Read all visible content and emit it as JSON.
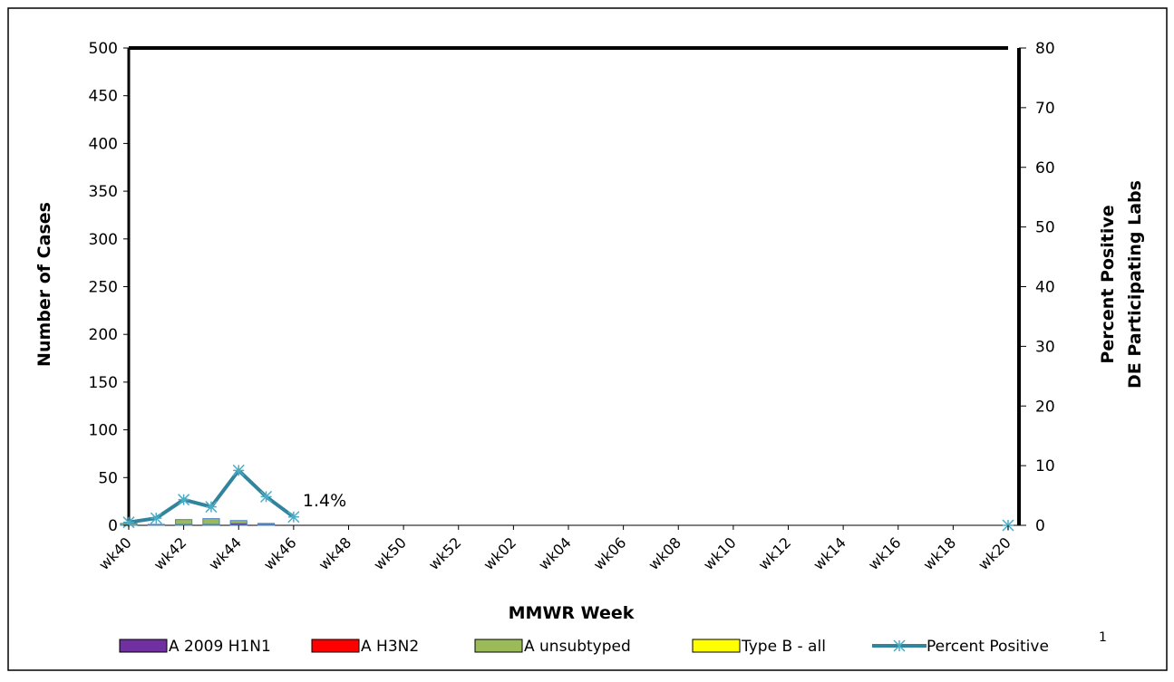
{
  "chart_data": {
    "type": "bar",
    "categories": [
      "wk40",
      "wk41",
      "wk42",
      "wk43",
      "wk44",
      "wk45",
      "wk46",
      "wk47",
      "wk48",
      "wk49",
      "wk50",
      "wk51",
      "wk52",
      "wk01",
      "wk02",
      "wk03",
      "wk04",
      "wk05",
      "wk06",
      "wk07",
      "wk08",
      "wk09",
      "wk10",
      "wk11",
      "wk12",
      "wk13",
      "wk14",
      "wk15",
      "wk16",
      "wk17",
      "wk18",
      "wk19",
      "wk20"
    ],
    "tick_labels": [
      "wk40",
      "wk42",
      "wk44",
      "wk46",
      "wk48",
      "wk50",
      "wk52",
      "wk02",
      "wk04",
      "wk06",
      "wk08",
      "wk10",
      "wk12",
      "wk14",
      "wk16",
      "wk18",
      "wk20"
    ],
    "xlabel": "MMWR Week",
    "ylabel": "Number of Cases",
    "y2label_line1": "Percent Positive",
    "y2label_line2": "DE Participating Labs",
    "ylim": [
      0,
      500
    ],
    "yticks": [
      0,
      50,
      100,
      150,
      200,
      250,
      300,
      350,
      400,
      450,
      500
    ],
    "y2lim": [
      0,
      80
    ],
    "y2ticks": [
      0,
      10,
      20,
      30,
      40,
      50,
      60,
      70,
      80
    ],
    "stacked": true,
    "series": [
      {
        "name": "A 2009 H1N1",
        "kind": "bar",
        "color": "#7030a0",
        "values": [
          0,
          0,
          1,
          1,
          2,
          0,
          0,
          0,
          0,
          0,
          0,
          0,
          0,
          0,
          0,
          0,
          0,
          0,
          0,
          0,
          0,
          0,
          0,
          0,
          0,
          0,
          0,
          0,
          0,
          0,
          0,
          0,
          0
        ]
      },
      {
        "name": "A H3N2",
        "kind": "bar",
        "color": "#ff0000",
        "values": [
          0,
          0,
          0,
          0,
          0,
          1,
          0,
          0,
          0,
          0,
          0,
          0,
          0,
          0,
          0,
          0,
          0,
          0,
          0,
          0,
          0,
          0,
          0,
          0,
          0,
          0,
          0,
          0,
          0,
          0,
          0,
          0,
          0
        ]
      },
      {
        "name": "A unsubtyped",
        "kind": "bar",
        "color": "#9bbb59",
        "values": [
          2,
          1,
          5,
          6,
          3,
          1,
          0,
          0,
          0,
          0,
          0,
          0,
          0,
          0,
          0,
          0,
          0,
          0,
          0,
          0,
          0,
          0,
          0,
          0,
          0,
          0,
          0,
          0,
          0,
          0,
          0,
          0,
          0
        ]
      },
      {
        "name": "Type B - all",
        "kind": "bar",
        "color": "#ffff00",
        "values": [
          0,
          0,
          0,
          0,
          0,
          0,
          0,
          0,
          0,
          0,
          0,
          0,
          0,
          0,
          0,
          0,
          0,
          0,
          0,
          0,
          0,
          0,
          0,
          0,
          0,
          0,
          0,
          0,
          0,
          0,
          0,
          0,
          0
        ]
      },
      {
        "name": "Percent Positive",
        "kind": "line",
        "axis": "right",
        "color": "#31849b",
        "values": [
          0.5,
          1.2,
          4.3,
          3.1,
          9.2,
          4.8,
          1.4,
          null,
          null,
          null,
          null,
          null,
          null,
          null,
          null,
          null,
          null,
          null,
          null,
          null,
          null,
          null,
          null,
          null,
          null,
          null,
          null,
          null,
          null,
          null,
          null,
          null,
          0
        ]
      }
    ],
    "annotation": {
      "text": "1.4%",
      "category": "wk46"
    },
    "footnote": "1",
    "legend_position": "bottom",
    "grid": false
  }
}
